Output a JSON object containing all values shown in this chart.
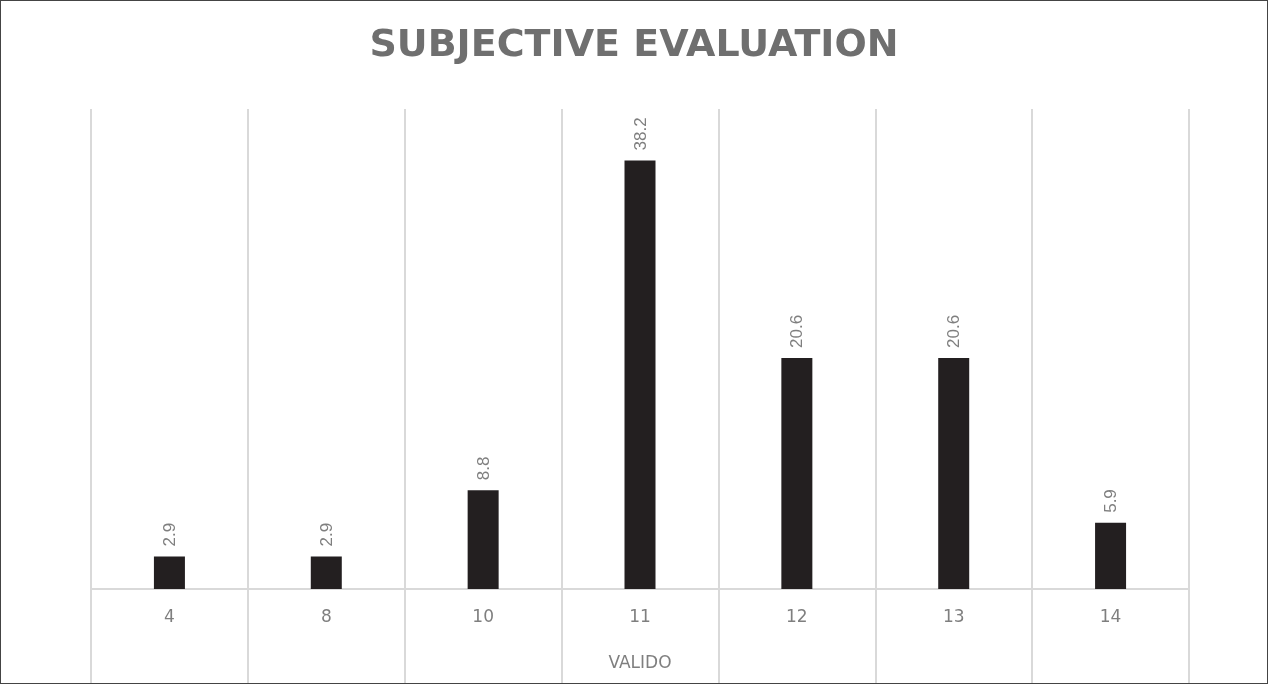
{
  "chart_data": {
    "type": "bar",
    "title": "SUBJECTIVE EVALUATION",
    "xlabel": "VALIDO",
    "categories": [
      "4",
      "8",
      "10",
      "11",
      "12",
      "13",
      "14"
    ],
    "values": [
      2.9,
      2.9,
      8.8,
      38.2,
      20.6,
      20.6,
      5.9
    ],
    "color": "#231f20",
    "data_labels": true,
    "grid": "x"
  }
}
